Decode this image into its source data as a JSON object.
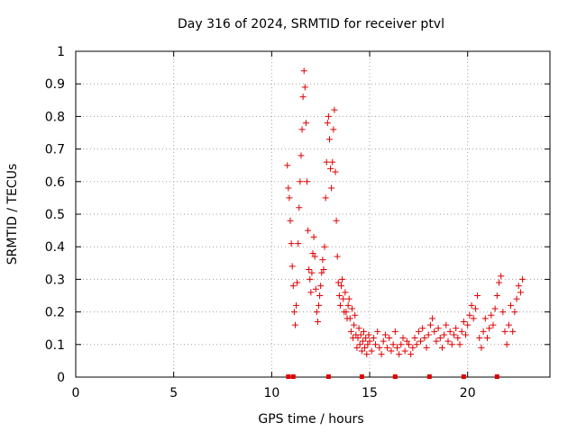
{
  "chart_data": {
    "type": "scatter",
    "title": "Day 316 of 2024, SRMTID for receiver ptvl",
    "xlabel": "GPS time / hours",
    "ylabel": "SRMTID / TECUs",
    "xlim": [
      0,
      24.2
    ],
    "ylim": [
      0,
      1
    ],
    "x_ticks": [
      0,
      5,
      10,
      15,
      20
    ],
    "x_tick_labels": [
      "0",
      "5",
      "10",
      "15",
      "20"
    ],
    "y_ticks": [
      0,
      0.1,
      0.2,
      0.3,
      0.4,
      0.5,
      0.6,
      0.7,
      0.8,
      0.9,
      1
    ],
    "y_tick_labels": [
      "0",
      "0.1",
      "0.2",
      "0.3",
      "0.4",
      "0.5",
      "0.6",
      "0.7",
      "0.8",
      "0.9",
      "1"
    ],
    "grid": true,
    "marker": "+",
    "color": "#e00000",
    "series": [
      {
        "name": "SRMTID",
        "points": [
          [
            10.8,
            0.65
          ],
          [
            10.85,
            0.58
          ],
          [
            10.9,
            0.55
          ],
          [
            10.95,
            0.48
          ],
          [
            11.0,
            0.41
          ],
          [
            11.05,
            0.34
          ],
          [
            11.1,
            0.28
          ],
          [
            11.15,
            0.2
          ],
          [
            11.2,
            0.16
          ],
          [
            11.25,
            0.22
          ],
          [
            11.3,
            0.29
          ],
          [
            11.35,
            0.41
          ],
          [
            11.4,
            0.52
          ],
          [
            11.45,
            0.6
          ],
          [
            11.5,
            0.68
          ],
          [
            11.55,
            0.76
          ],
          [
            11.6,
            0.86
          ],
          [
            11.65,
            0.94
          ],
          [
            11.7,
            0.89
          ],
          [
            11.75,
            0.78
          ],
          [
            11.8,
            0.6
          ],
          [
            11.85,
            0.45
          ],
          [
            11.9,
            0.33
          ],
          [
            11.95,
            0.3
          ],
          [
            12.0,
            0.26
          ],
          [
            12.05,
            0.32
          ],
          [
            12.1,
            0.38
          ],
          [
            12.15,
            0.43
          ],
          [
            12.2,
            0.37
          ],
          [
            12.25,
            0.27
          ],
          [
            12.3,
            0.2
          ],
          [
            12.35,
            0.17
          ],
          [
            12.4,
            0.22
          ],
          [
            12.45,
            0.25
          ],
          [
            12.5,
            0.28
          ],
          [
            12.55,
            0.32
          ],
          [
            12.6,
            0.36
          ],
          [
            12.65,
            0.33
          ],
          [
            12.7,
            0.4
          ],
          [
            12.75,
            0.55
          ],
          [
            12.8,
            0.66
          ],
          [
            12.85,
            0.78
          ],
          [
            12.9,
            0.8
          ],
          [
            12.95,
            0.73
          ],
          [
            13.0,
            0.64
          ],
          [
            13.05,
            0.58
          ],
          [
            13.1,
            0.66
          ],
          [
            13.15,
            0.76
          ],
          [
            13.2,
            0.82
          ],
          [
            13.25,
            0.63
          ],
          [
            13.3,
            0.48
          ],
          [
            13.35,
            0.37
          ],
          [
            13.4,
            0.29
          ],
          [
            13.45,
            0.25
          ],
          [
            13.5,
            0.22
          ],
          [
            13.55,
            0.28
          ],
          [
            13.6,
            0.3
          ],
          [
            13.65,
            0.24
          ],
          [
            13.7,
            0.2
          ],
          [
            13.75,
            0.26
          ],
          [
            13.8,
            0.2
          ],
          [
            13.85,
            0.18
          ],
          [
            13.9,
            0.22
          ],
          [
            13.95,
            0.24
          ],
          [
            14.0,
            0.18
          ],
          [
            14.05,
            0.14
          ],
          [
            14.1,
            0.21
          ],
          [
            14.15,
            0.12
          ],
          [
            14.2,
            0.16
          ],
          [
            14.25,
            0.19
          ],
          [
            14.3,
            0.13
          ],
          [
            14.35,
            0.09
          ],
          [
            14.4,
            0.12
          ],
          [
            14.45,
            0.15
          ],
          [
            14.5,
            0.1
          ],
          [
            14.55,
            0.13
          ],
          [
            14.6,
            0.08
          ],
          [
            14.65,
            0.11
          ],
          [
            14.7,
            0.14
          ],
          [
            14.75,
            0.09
          ],
          [
            14.8,
            0.12
          ],
          [
            14.85,
            0.07
          ],
          [
            14.9,
            0.1
          ],
          [
            14.95,
            0.13
          ],
          [
            15.0,
            0.11
          ],
          [
            15.1,
            0.08
          ],
          [
            15.2,
            0.12
          ],
          [
            15.3,
            0.1
          ],
          [
            15.4,
            0.14
          ],
          [
            15.5,
            0.09
          ],
          [
            15.6,
            0.07
          ],
          [
            15.7,
            0.11
          ],
          [
            15.8,
            0.13
          ],
          [
            15.9,
            0.09
          ],
          [
            16.0,
            0.12
          ],
          [
            16.1,
            0.08
          ],
          [
            16.2,
            0.1
          ],
          [
            16.3,
            0.14
          ],
          [
            16.4,
            0.09
          ],
          [
            16.5,
            0.07
          ],
          [
            16.6,
            0.1
          ],
          [
            16.7,
            0.12
          ],
          [
            16.8,
            0.08
          ],
          [
            16.9,
            0.11
          ],
          [
            17.0,
            0.1
          ],
          [
            17.1,
            0.07
          ],
          [
            17.2,
            0.09
          ],
          [
            17.3,
            0.12
          ],
          [
            17.4,
            0.1
          ],
          [
            17.5,
            0.14
          ],
          [
            17.6,
            0.11
          ],
          [
            17.7,
            0.15
          ],
          [
            17.8,
            0.12
          ],
          [
            17.9,
            0.09
          ],
          [
            18.0,
            0.13
          ],
          [
            18.1,
            0.16
          ],
          [
            18.2,
            0.18
          ],
          [
            18.3,
            0.14
          ],
          [
            18.4,
            0.11
          ],
          [
            18.5,
            0.15
          ],
          [
            18.6,
            0.12
          ],
          [
            18.7,
            0.09
          ],
          [
            18.8,
            0.13
          ],
          [
            18.9,
            0.16
          ],
          [
            19.0,
            0.11
          ],
          [
            19.1,
            0.14
          ],
          [
            19.2,
            0.1
          ],
          [
            19.3,
            0.13
          ],
          [
            19.4,
            0.15
          ],
          [
            19.5,
            0.12
          ],
          [
            19.6,
            0.1
          ],
          [
            19.7,
            0.14
          ],
          [
            19.8,
            0.17
          ],
          [
            19.9,
            0.13
          ],
          [
            20.0,
            0.16
          ],
          [
            20.1,
            0.19
          ],
          [
            20.2,
            0.22
          ],
          [
            20.3,
            0.18
          ],
          [
            20.4,
            0.21
          ],
          [
            20.5,
            0.25
          ],
          [
            20.6,
            0.12
          ],
          [
            20.7,
            0.09
          ],
          [
            20.8,
            0.14
          ],
          [
            20.9,
            0.18
          ],
          [
            21.0,
            0.12
          ],
          [
            21.1,
            0.15
          ],
          [
            21.2,
            0.19
          ],
          [
            21.3,
            0.16
          ],
          [
            21.4,
            0.21
          ],
          [
            21.5,
            0.25
          ],
          [
            21.6,
            0.29
          ],
          [
            21.7,
            0.31
          ],
          [
            21.8,
            0.2
          ],
          [
            21.9,
            0.14
          ],
          [
            22.0,
            0.1
          ],
          [
            22.1,
            0.16
          ],
          [
            22.2,
            0.22
          ],
          [
            22.3,
            0.14
          ],
          [
            22.4,
            0.2
          ],
          [
            22.5,
            0.24
          ],
          [
            22.6,
            0.28
          ],
          [
            22.7,
            0.26
          ],
          [
            22.8,
            0.3
          ]
        ]
      }
    ],
    "markers_at_zero": [
      10.85,
      11.1,
      12.9,
      14.6,
      16.3,
      18.05,
      19.8,
      21.5
    ]
  }
}
